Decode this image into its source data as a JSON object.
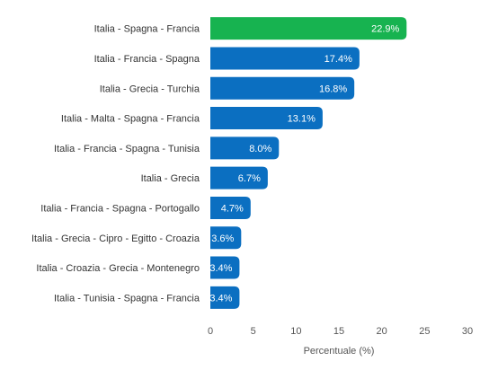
{
  "chart_data": {
    "type": "bar",
    "orientation": "horizontal",
    "categories": [
      "Italia - Spagna - Francia",
      "Italia - Francia - Spagna",
      "Italia - Grecia - Turchia",
      "Italia - Malta - Spagna - Francia",
      "Italia - Francia - Spagna - Tunisia",
      "Italia - Grecia",
      "Italia - Francia - Spagna - Portogallo",
      "Italia - Grecia - Cipro - Egitto - Croazia",
      "Italia - Croazia - Grecia - Montenegro",
      "Italia - Tunisia - Spagna - Francia"
    ],
    "values": [
      22.9,
      17.4,
      16.8,
      13.1,
      8.0,
      6.7,
      4.7,
      3.6,
      3.4,
      3.4
    ],
    "value_labels": [
      "22.9%",
      "17.4%",
      "16.8%",
      "13.1%",
      "8.0%",
      "6.7%",
      "4.7%",
      "3.6%",
      "3.4%",
      "3.4%"
    ],
    "xlabel": "Percentuale (%)",
    "xlim": [
      0,
      30
    ],
    "xticks": [
      0,
      5,
      10,
      15,
      20,
      25,
      30
    ],
    "colors": {
      "highlight": "#17b350",
      "bar": "#0b6fc1"
    },
    "highlight_index": 0,
    "grid": false
  }
}
